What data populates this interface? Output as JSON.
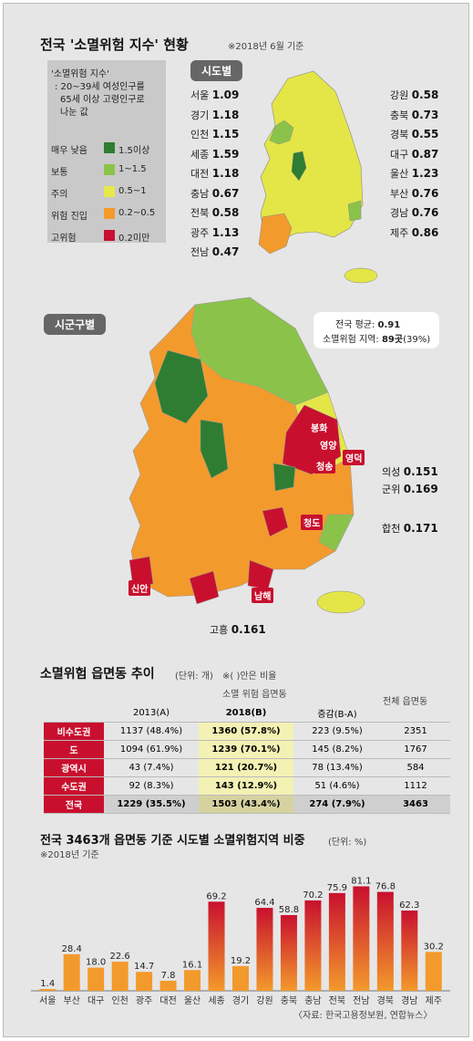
{
  "header": {
    "title": "전국 '소멸위험 지수' 현황",
    "note": "※2018년 6월 기준"
  },
  "sido_badge": "시도별",
  "sigungu_badge": "시군구별",
  "legend": {
    "desc": [
      "'소멸위험 지수'",
      ": 20~39세 여성인구를",
      "65세 이상 고령인구로",
      "나눈 값"
    ],
    "items": [
      {
        "label": "매우 낮음",
        "range": "1.5이상",
        "color": "#2e7d32"
      },
      {
        "label": "보통",
        "range": "1~1.5",
        "color": "#8bc34a"
      },
      {
        "label": "주의",
        "range": "0.5~1",
        "color": "#e6e84a"
      },
      {
        "label": "위험 진입",
        "range": "0.2~0.5",
        "color": "#f39a2c"
      },
      {
        "label": "고위험",
        "range": "0.2미만",
        "color": "#c8102e"
      }
    ]
  },
  "regions_left": [
    {
      "name": "서울",
      "value": "1.09"
    },
    {
      "name": "경기",
      "value": "1.18"
    },
    {
      "name": "인천",
      "value": "1.15"
    },
    {
      "name": "세종",
      "value": "1.59"
    },
    {
      "name": "대전",
      "value": "1.18"
    },
    {
      "name": "충남",
      "value": "0.67"
    },
    {
      "name": "전북",
      "value": "0.58"
    },
    {
      "name": "광주",
      "value": "1.13"
    },
    {
      "name": "전남",
      "value": "0.47"
    }
  ],
  "regions_right": [
    {
      "name": "강원",
      "value": "0.58"
    },
    {
      "name": "충북",
      "value": "0.73"
    },
    {
      "name": "경북",
      "value": "0.55"
    },
    {
      "name": "대구",
      "value": "0.87"
    },
    {
      "name": "울산",
      "value": "1.23"
    },
    {
      "name": "부산",
      "value": "0.76"
    },
    {
      "name": "경남",
      "value": "0.76"
    },
    {
      "name": "제주",
      "value": "0.86"
    }
  ],
  "avg_box": {
    "line1_label": "전국 평균:",
    "line1_value": "0.91",
    "line2_label": "소멸위험 지역:",
    "line2_value": "89곳",
    "line2_pct": "(39%)"
  },
  "map_labels": [
    "봉화",
    "영양",
    "영덕",
    "청송",
    "청도",
    "신안",
    "남해"
  ],
  "counties": [
    {
      "name": "의성",
      "value": "0.151"
    },
    {
      "name": "군위",
      "value": "0.169"
    },
    {
      "name": "합천",
      "value": "0.171"
    },
    {
      "name": "고흥",
      "value": "0.161"
    }
  ],
  "table": {
    "title": "소멸위험 읍면동 추이",
    "unit": "(단위: 개)",
    "note": "※( )안은 비율",
    "group_header": "소멸 위험 읍면동",
    "total_header": "전체 읍면동",
    "columns": [
      "2013(A)",
      "2018(B)",
      "증감(B-A)"
    ],
    "rows": [
      {
        "label": "비수도권",
        "c1": "1137 (48.4%)",
        "c2": "1360 (57.8%)",
        "c3": "223 (9.5%)",
        "total": "2351"
      },
      {
        "label": "도",
        "c1": "1094 (61.9%)",
        "c2": "1239 (70.1%)",
        "c3": "145 (8.2%)",
        "total": "1767"
      },
      {
        "label": "광역시",
        "c1": "43 (7.4%)",
        "c2": "121 (20.7%)",
        "c3": "78 (13.4%)",
        "total": "584"
      },
      {
        "label": "수도권",
        "c1": "92 (8.3%)",
        "c2": "143 (12.9%)",
        "c3": "51 (4.6%)",
        "total": "1112"
      },
      {
        "label": "전국",
        "c1": "1229 (35.5%)",
        "c2": "1503 (43.4%)",
        "c3": "274 (7.9%)",
        "total": "3463"
      }
    ]
  },
  "chart_data": {
    "type": "bar",
    "title": "전국 3463개 읍면동 기준 시도별 소멸위험지역 비중",
    "unit": "(단위: %)",
    "subtitle": "※2018년 기준",
    "categories": [
      "서울",
      "부산",
      "대구",
      "인천",
      "광주",
      "대전",
      "울산",
      "세종",
      "경기",
      "강원",
      "충북",
      "충남",
      "전북",
      "전남",
      "경북",
      "경남",
      "제주"
    ],
    "values": [
      1.4,
      28.4,
      18.0,
      22.6,
      14.7,
      7.8,
      16.1,
      69.2,
      19.2,
      64.4,
      58.8,
      70.2,
      75.9,
      81.1,
      76.8,
      62.3,
      30.2
    ],
    "labels": [
      "1.4",
      "28.4",
      "18.0",
      "22.6",
      "14.7",
      "7.8",
      "16.1",
      "69.2",
      "19.2",
      "64.4",
      "58.8",
      "70.2",
      "75.9",
      "81.1",
      "76.8",
      "62.3",
      "30.2"
    ],
    "ylim": [
      0,
      85
    ],
    "source": "〈자료: 한국고용정보원, 연합뉴스〉"
  }
}
